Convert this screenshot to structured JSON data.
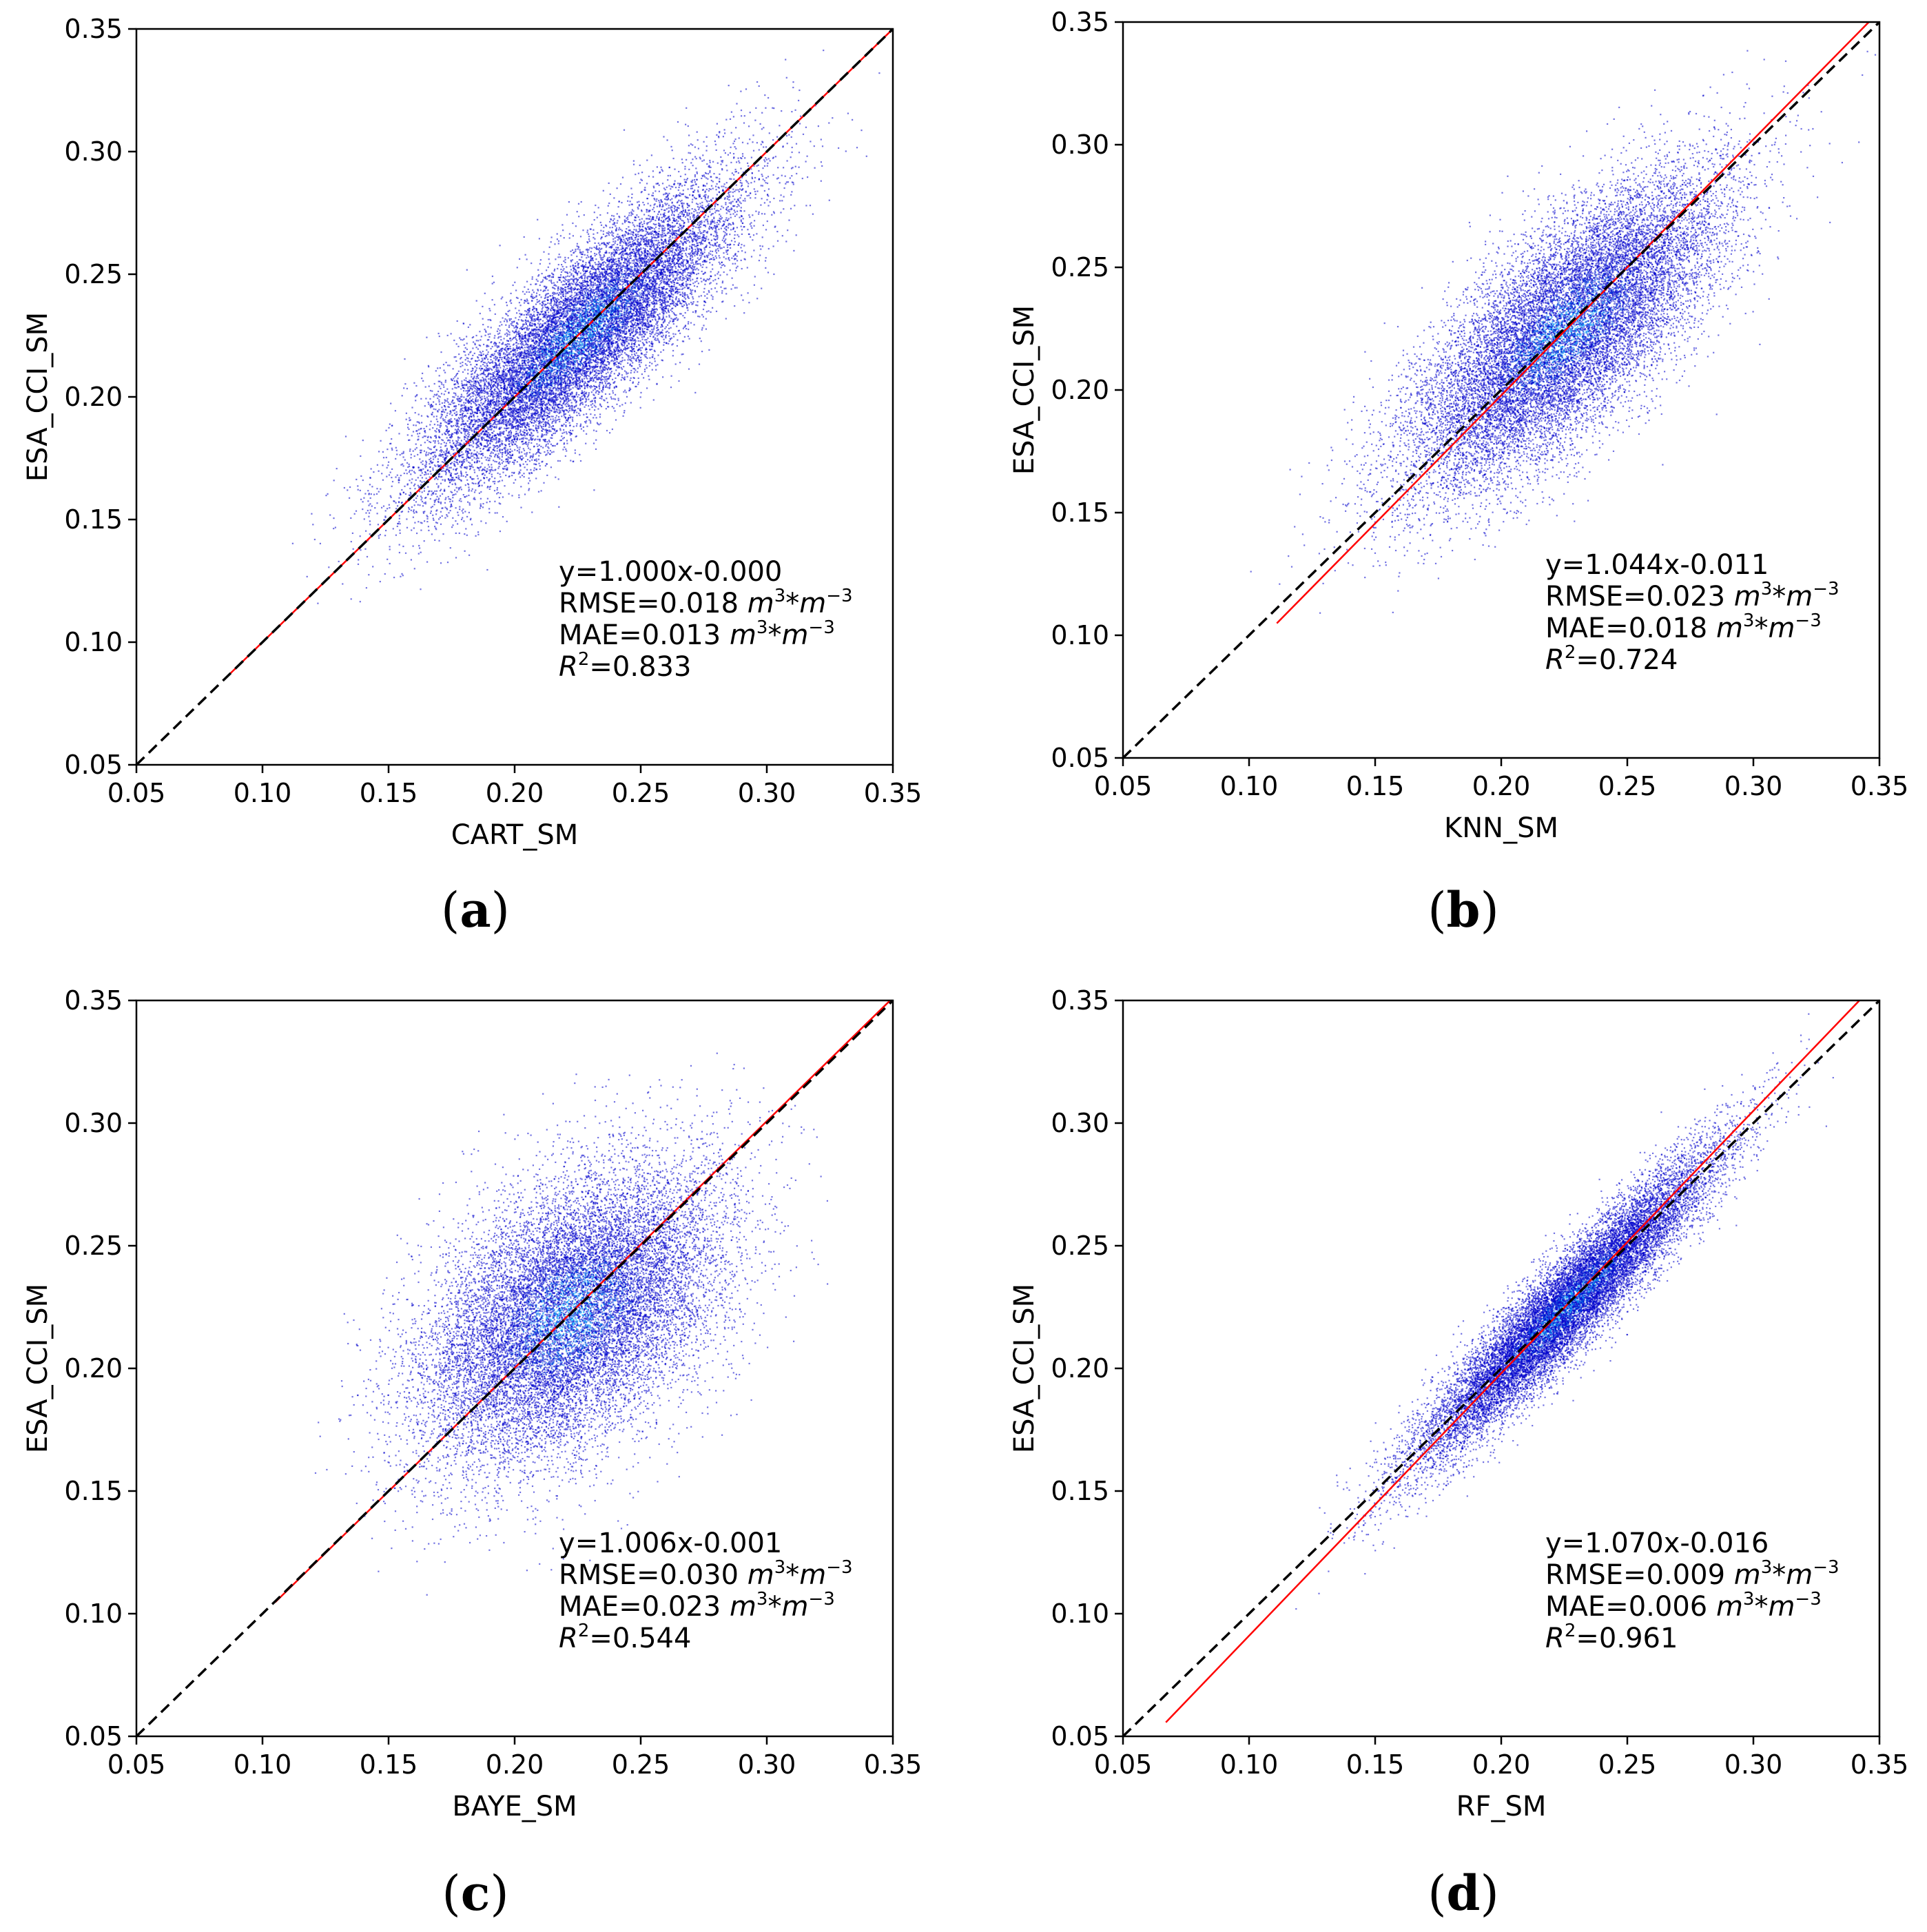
{
  "figure": {
    "panels_count": 4
  },
  "chart_data": [
    {
      "type": "scatter",
      "panel_label": "a",
      "caption_open": "(",
      "caption_close": ")",
      "xlabel": "CART_SM",
      "ylabel": "ESA_CCI_SM",
      "xlim": [
        0.05,
        0.35
      ],
      "ylim": [
        0.05,
        0.35
      ],
      "xticks": [
        "0.05",
        "0.10",
        "0.15",
        "0.20",
        "0.25",
        "0.30",
        "0.35"
      ],
      "yticks": [
        "0.05",
        "0.10",
        "0.15",
        "0.20",
        "0.25",
        "0.30",
        "0.35"
      ],
      "reference_line": {
        "style": "dashed",
        "color": "#000000",
        "from": [
          0.05,
          0.05
        ],
        "to": [
          0.35,
          0.35
        ]
      },
      "fit_line": {
        "slope": 1.0,
        "intercept": 0.0,
        "color": "#ff0000",
        "x_range": [
          0.085,
          0.35
        ]
      },
      "cloud": {
        "center": 0.225,
        "spread_along": 0.042,
        "spread_across": 0.0125,
        "x_min": 0.1,
        "x_max": 0.34,
        "points": 16000
      },
      "annotations": {
        "equation": "y=1.000x-0.000",
        "rmse_prefix": "RMSE=0.018 ",
        "mae_prefix": "MAE=0.013 ",
        "r2_value": "=0.833"
      }
    },
    {
      "type": "scatter",
      "panel_label": "b",
      "caption_open": "(",
      "caption_close": ")",
      "xlabel": "KNN_SM",
      "ylabel": "ESA_CCI_SM",
      "xlim": [
        0.05,
        0.35
      ],
      "ylim": [
        0.05,
        0.35
      ],
      "xticks": [
        "0.05",
        "0.10",
        "0.15",
        "0.20",
        "0.25",
        "0.30",
        "0.35"
      ],
      "yticks": [
        "0.05",
        "0.10",
        "0.15",
        "0.20",
        "0.25",
        "0.30",
        "0.35"
      ],
      "reference_line": {
        "style": "dashed",
        "color": "#000000",
        "from": [
          0.05,
          0.05
        ],
        "to": [
          0.35,
          0.35
        ]
      },
      "fit_line": {
        "slope": 1.044,
        "intercept": -0.011,
        "color": "#ff0000",
        "x_range": [
          0.111,
          0.346
        ]
      },
      "cloud": {
        "center": 0.225,
        "spread_along": 0.04,
        "spread_across": 0.0165,
        "x_min": 0.11,
        "x_max": 0.34,
        "points": 16000
      },
      "annotations": {
        "equation": "y=1.044x-0.011",
        "rmse_prefix": "RMSE=0.023 ",
        "mae_prefix": "MAE=0.018 ",
        "r2_value": "=0.724"
      }
    },
    {
      "type": "scatter",
      "panel_label": "c",
      "caption_open": "(",
      "caption_close": ")",
      "xlabel": "BAYE_SM",
      "ylabel": "ESA_CCI_SM",
      "xlim": [
        0.05,
        0.35
      ],
      "ylim": [
        0.05,
        0.35
      ],
      "xticks": [
        "0.05",
        "0.10",
        "0.15",
        "0.20",
        "0.25",
        "0.30",
        "0.35"
      ],
      "yticks": [
        "0.05",
        "0.10",
        "0.15",
        "0.20",
        "0.25",
        "0.30",
        "0.35"
      ],
      "reference_line": {
        "style": "dashed",
        "color": "#000000",
        "from": [
          0.05,
          0.05
        ],
        "to": [
          0.35,
          0.35
        ]
      },
      "fit_line": {
        "slope": 1.006,
        "intercept": -0.001,
        "color": "#ff0000",
        "x_range": [
          0.105,
          0.35
        ]
      },
      "cloud": {
        "center": 0.222,
        "spread_along": 0.036,
        "spread_across": 0.022,
        "x_min": 0.13,
        "x_max": 0.32,
        "points": 16000
      },
      "annotations": {
        "equation": "y=1.006x-0.001",
        "rmse_prefix": "RMSE=0.030 ",
        "mae_prefix": "MAE=0.023 ",
        "r2_value": "=0.544"
      }
    },
    {
      "type": "scatter",
      "panel_label": "d",
      "caption_open": "(",
      "caption_close": ")",
      "xlabel": "RF_SM",
      "ylabel": "ESA_CCI_SM",
      "xlim": [
        0.05,
        0.35
      ],
      "ylim": [
        0.05,
        0.35
      ],
      "xticks": [
        "0.05",
        "0.10",
        "0.15",
        "0.20",
        "0.25",
        "0.30",
        "0.35"
      ],
      "yticks": [
        "0.05",
        "0.10",
        "0.15",
        "0.20",
        "0.25",
        "0.30",
        "0.35"
      ],
      "reference_line": {
        "style": "dashed",
        "color": "#000000",
        "from": [
          0.05,
          0.05
        ],
        "to": [
          0.35,
          0.35
        ]
      },
      "fit_line": {
        "slope": 1.07,
        "intercept": -0.016,
        "color": "#ff0000",
        "x_range": [
          0.067,
          0.342
        ]
      },
      "cloud": {
        "center": 0.225,
        "spread_along": 0.04,
        "spread_across": 0.0075,
        "x_min": 0.11,
        "x_max": 0.34,
        "points": 16000
      },
      "annotations": {
        "equation": "y=1.070x-0.016",
        "rmse_prefix": "RMSE=0.009 ",
        "mae_prefix": "MAE=0.006 ",
        "r2_value": "=0.961"
      }
    }
  ],
  "common": {
    "unit_base": "m",
    "unit_exp_pos": "3",
    "unit_mid": "*",
    "unit_exp_neg": "−3",
    "r2_base": "R",
    "r2_exp": "2"
  },
  "colors": {
    "scatter_low": "#0000cc",
    "scatter_high": "#00bfff",
    "fit": "#ff0000",
    "reference": "#000000",
    "frame": "#000000"
  }
}
